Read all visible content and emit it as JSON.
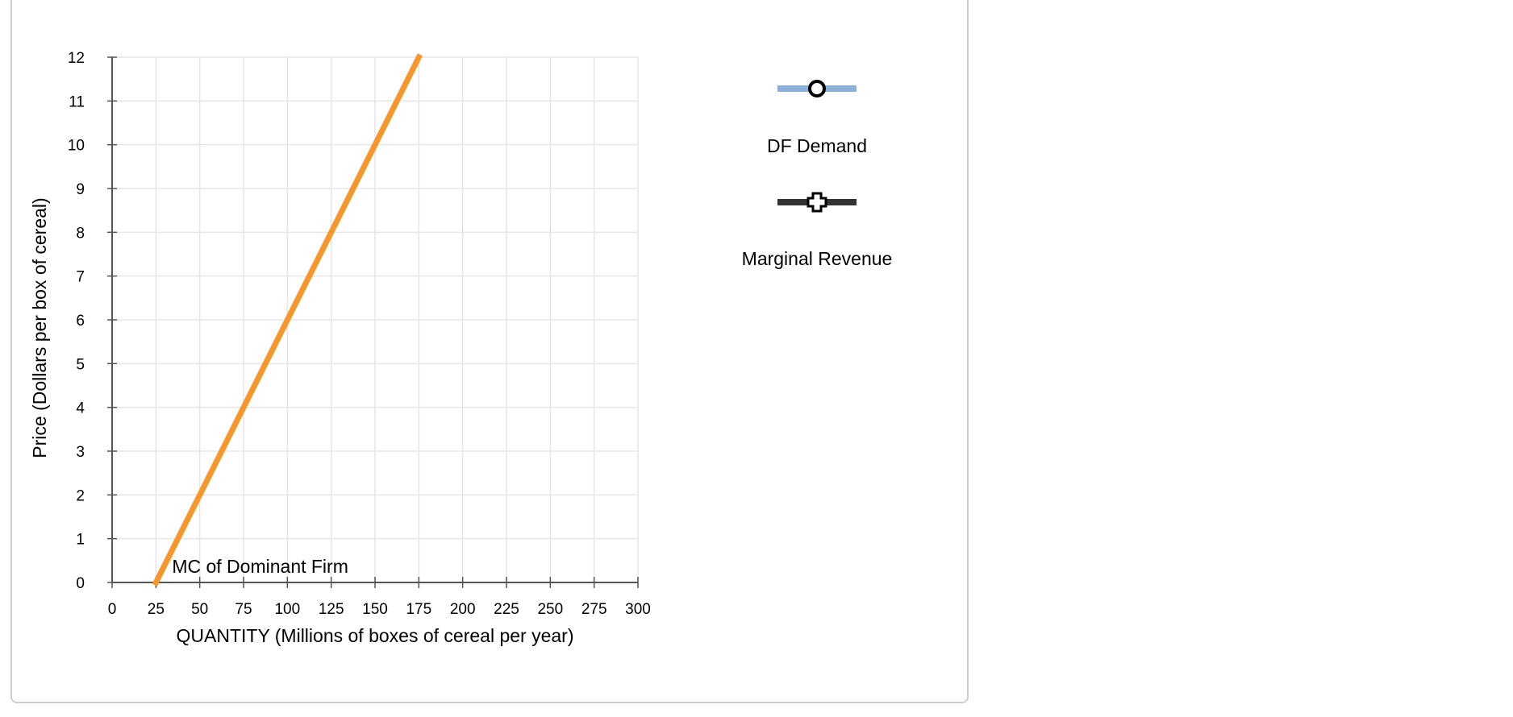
{
  "chart_data": {
    "type": "line",
    "xlabel": "QUANTITY (Millions of boxes of cereal per year)",
    "ylabel": "Price (Dollars per box of cereal)",
    "xlim": [
      0,
      300
    ],
    "ylim": [
      0,
      12
    ],
    "x_ticks": [
      0,
      25,
      50,
      75,
      100,
      125,
      150,
      175,
      200,
      225,
      250,
      275,
      300
    ],
    "y_ticks": [
      0,
      1,
      2,
      3,
      4,
      5,
      6,
      7,
      8,
      9,
      10,
      11,
      12
    ],
    "grid": true,
    "series": [
      {
        "name": "MC of Dominant Firm",
        "color": "#f7962b",
        "x": [
          25,
          175
        ],
        "y": [
          0,
          12
        ]
      }
    ],
    "legend": {
      "placement": "right",
      "items": [
        {
          "name": "DF Demand",
          "color": "#8cb0d9",
          "marker": "circle"
        },
        {
          "name": "Marginal Revenue",
          "color": "#333333",
          "marker": "cross"
        }
      ]
    }
  }
}
